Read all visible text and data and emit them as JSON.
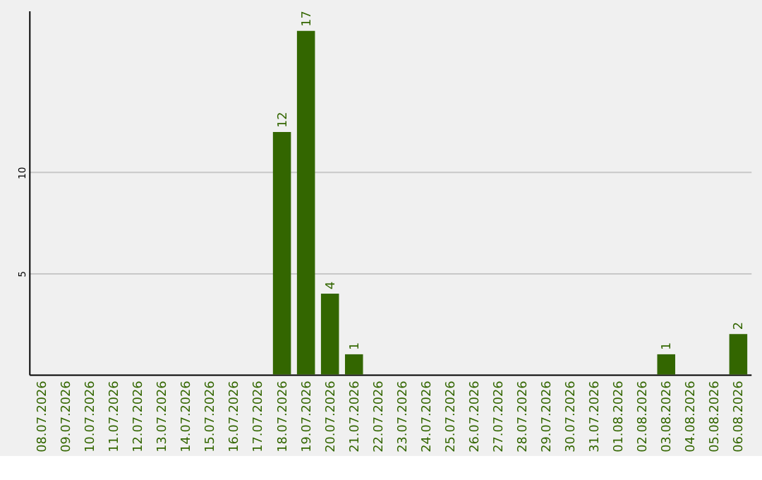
{
  "chart_data": {
    "type": "bar",
    "categories": [
      "08.07.2026",
      "09.07.2026",
      "10.07.2026",
      "11.07.2026",
      "12.07.2026",
      "13.07.2026",
      "14.07.2026",
      "15.07.2026",
      "16.07.2026",
      "17.07.2026",
      "18.07.2026",
      "19.07.2026",
      "20.07.2026",
      "21.07.2026",
      "22.07.2026",
      "23.07.2026",
      "24.07.2026",
      "25.07.2026",
      "26.07.2026",
      "27.07.2026",
      "28.07.2026",
      "29.07.2026",
      "30.07.2026",
      "31.07.2026",
      "01.08.2026",
      "02.08.2026",
      "03.08.2026",
      "04.08.2026",
      "05.08.2026",
      "06.08.2026"
    ],
    "values": [
      0,
      0,
      0,
      0,
      0,
      0,
      0,
      0,
      0,
      0,
      12,
      17,
      4,
      1,
      0,
      0,
      0,
      0,
      0,
      0,
      0,
      0,
      0,
      0,
      0,
      0,
      1,
      0,
      0,
      2
    ],
    "value_labels": [
      null,
      null,
      null,
      null,
      null,
      null,
      null,
      null,
      null,
      null,
      "12",
      "17",
      "4",
      "1",
      null,
      null,
      null,
      null,
      null,
      null,
      null,
      null,
      null,
      null,
      null,
      null,
      "1",
      null,
      null,
      "2"
    ],
    "color": "#336600",
    "ylim": [
      0,
      18
    ],
    "yticks": [
      5,
      10
    ],
    "grid": "y"
  }
}
